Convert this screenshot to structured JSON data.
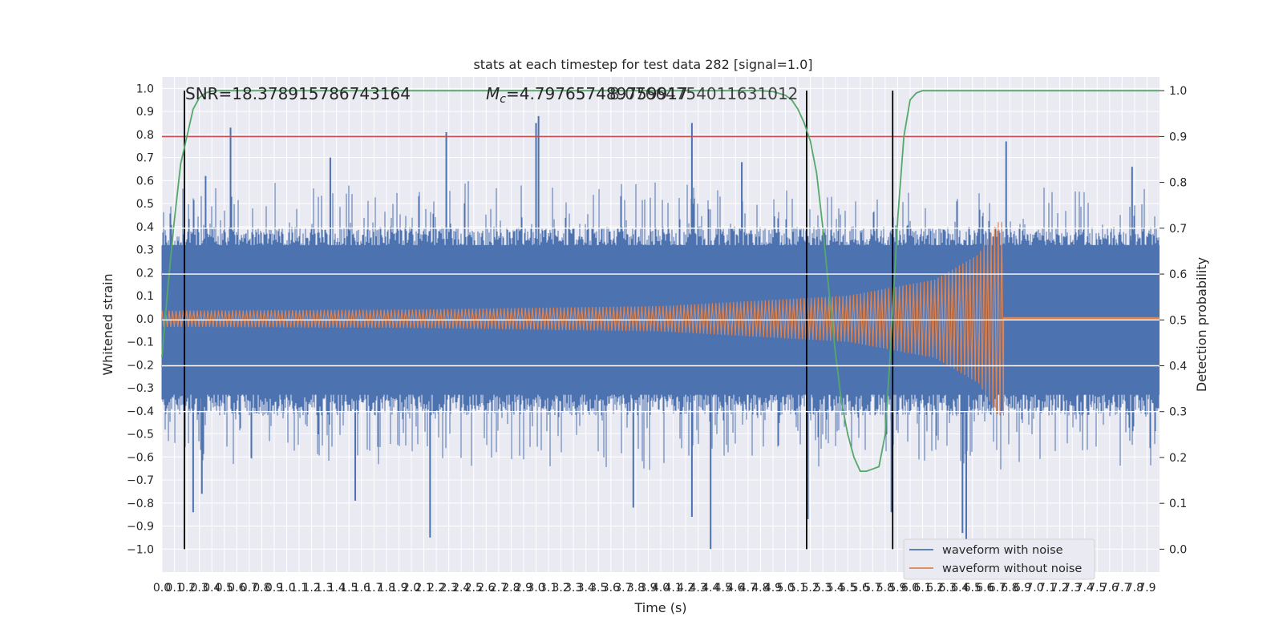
{
  "chart_data": {
    "type": "line",
    "title": "stats at each timestep for test data 282 [signal=1.0]",
    "xlabel": "Time (s)",
    "ylabel": "Whitened strain",
    "y2label": "Detection probability",
    "xlim": [
      0.0,
      8.0
    ],
    "ylim": [
      -1.1,
      1.05
    ],
    "y2lim": [
      -0.05,
      1.03
    ],
    "x_ticks": [
      "0.0",
      "0.1",
      "0.2",
      "0.3",
      "0.4",
      "0.5",
      "0.6",
      "0.7",
      "0.8",
      "0.9",
      "1.0",
      "1.1",
      "1.2",
      "1.3",
      "1.4",
      "1.5",
      "1.6",
      "1.7",
      "1.8",
      "1.9",
      "2.0",
      "2.1",
      "2.2",
      "2.3",
      "2.4",
      "2.5",
      "2.6",
      "2.7",
      "2.8",
      "2.9",
      "3.0",
      "3.1",
      "3.2",
      "3.3",
      "3.4",
      "3.5",
      "3.6",
      "3.7",
      "3.8",
      "3.9",
      "4.0",
      "4.1",
      "4.2",
      "4.3",
      "4.4",
      "4.5",
      "4.6",
      "4.7",
      "4.8",
      "4.9",
      "5.0",
      "5.1",
      "5.2",
      "5.3",
      "5.4",
      "5.5",
      "5.6",
      "5.7",
      "5.8",
      "5.9",
      "6.0",
      "6.1",
      "6.2",
      "6.3",
      "6.4",
      "6.5",
      "6.6",
      "6.7",
      "6.8",
      "6.9",
      "7.0",
      "7.1",
      "7.2",
      "7.3",
      "7.4",
      "7.5",
      "7.6",
      "7.7",
      "7.8",
      "7.9"
    ],
    "y_ticks": [
      "1.0",
      "0.9",
      "0.8",
      "0.7",
      "0.6",
      "0.5",
      "0.4",
      "0.3",
      "0.2",
      "0.1",
      "0.0",
      "−0.1",
      "−0.2",
      "−0.3",
      "−0.4",
      "−0.5",
      "−0.6",
      "−0.7",
      "−0.8",
      "−0.9",
      "−1.0"
    ],
    "y2_ticks": [
      "1.0",
      "0.9",
      "0.8",
      "0.7",
      "0.6",
      "0.5",
      "0.4",
      "0.3",
      "0.2",
      "0.1",
      "0.0"
    ],
    "annotations": {
      "snr": "SNR=18.378915786743164",
      "mc_prefix": "M",
      "mc_sub": "c",
      "mc_value": "=4.797657489759917",
      "overlap": "8.07664754011631012"
    },
    "series": [
      {
        "name": "waveform with noise",
        "color": "#4c72b0",
        "noise_band": [
          -0.42,
          0.4
        ],
        "spikes": [
          {
            "x": 0.55,
            "y": 0.83
          },
          {
            "x": 3.02,
            "y": 0.88
          },
          {
            "x": 3.0,
            "y": 0.85
          },
          {
            "x": 2.28,
            "y": 0.81
          },
          {
            "x": 4.25,
            "y": 0.85
          },
          {
            "x": 6.77,
            "y": 0.77
          },
          {
            "x": 2.15,
            "y": -0.95
          },
          {
            "x": 4.4,
            "y": -1.0
          },
          {
            "x": 6.45,
            "y": -0.96
          },
          {
            "x": 6.42,
            "y": -0.93
          },
          {
            "x": 0.25,
            "y": -0.84
          },
          {
            "x": 4.25,
            "y": -0.86
          },
          {
            "x": 5.18,
            "y": -0.87
          },
          {
            "x": 3.78,
            "y": -0.82
          },
          {
            "x": 5.85,
            "y": -0.84
          },
          {
            "x": 0.32,
            "y": -0.76
          },
          {
            "x": 1.55,
            "y": -0.79
          },
          {
            "x": 0.35,
            "y": 0.62
          },
          {
            "x": 1.35,
            "y": 0.7
          },
          {
            "x": 4.65,
            "y": 0.68
          },
          {
            "x": 7.78,
            "y": 0.66
          }
        ]
      },
      {
        "name": "waveform without noise",
        "color": "#dd8452",
        "envelope": [
          {
            "x": 0.0,
            "a": 0.035
          },
          {
            "x": 2.0,
            "a": 0.04
          },
          {
            "x": 4.0,
            "a": 0.055
          },
          {
            "x": 5.5,
            "a": 0.1
          },
          {
            "x": 6.2,
            "a": 0.17
          },
          {
            "x": 6.55,
            "a": 0.28
          },
          {
            "x": 6.7,
            "a": 0.42
          },
          {
            "x": 6.75,
            "a": 0.0
          },
          {
            "x": 8.0,
            "a": 0.0
          }
        ]
      },
      {
        "name": "detection probability",
        "color": "#55a868",
        "axis": "right",
        "x": [
          0.0,
          0.05,
          0.1,
          0.15,
          0.2,
          0.25,
          0.3,
          0.35,
          0.4,
          0.45,
          0.5,
          0.55,
          4.8,
          4.9,
          5.0,
          5.05,
          5.1,
          5.15,
          5.2,
          5.25,
          5.3,
          5.35,
          5.4,
          5.45,
          5.5,
          5.55,
          5.6,
          5.65,
          5.7,
          5.75,
          5.8,
          5.85,
          5.9,
          5.95,
          6.0,
          6.05,
          6.1,
          6.15,
          8.0
        ],
        "y": [
          0.42,
          0.58,
          0.72,
          0.84,
          0.9,
          0.96,
          0.985,
          0.995,
          0.999,
          1.0,
          1.0,
          1.0,
          1.0,
          0.998,
          0.99,
          0.98,
          0.96,
          0.93,
          0.89,
          0.82,
          0.7,
          0.56,
          0.43,
          0.32,
          0.25,
          0.2,
          0.17,
          0.17,
          0.175,
          0.18,
          0.25,
          0.47,
          0.72,
          0.9,
          0.98,
          0.995,
          1.0,
          1.0,
          1.0
        ]
      }
    ],
    "threshold": {
      "value": 0.9,
      "axis": "right",
      "color": "#c44e52"
    },
    "vertical_markers": [
      0.18,
      5.17,
      5.86
    ],
    "legend": {
      "position": "lower-right",
      "entries": [
        {
          "label": "waveform with noise",
          "color": "#4c72b0"
        },
        {
          "label": "waveform without noise",
          "color": "#dd8452"
        }
      ]
    },
    "grid": true
  }
}
